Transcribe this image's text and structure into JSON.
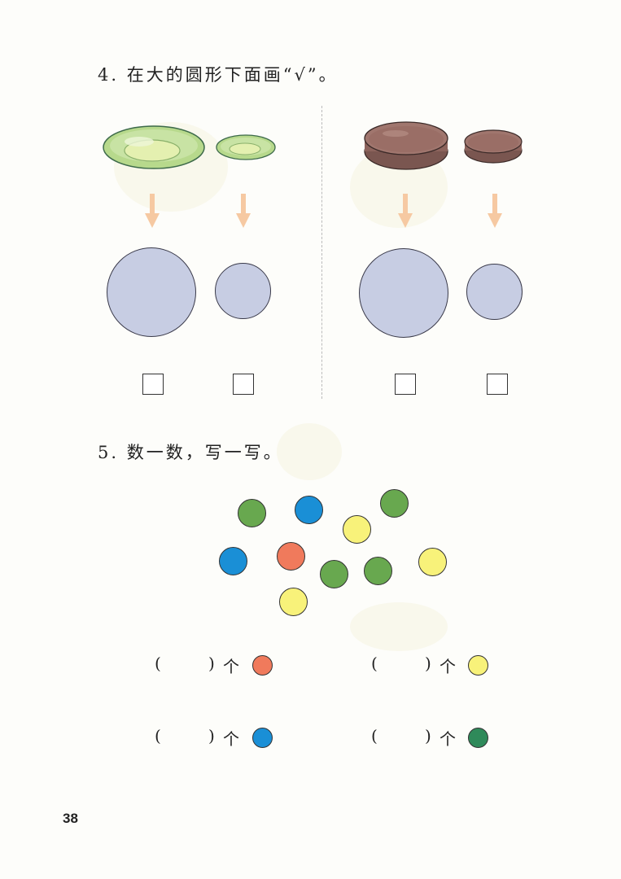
{
  "question4": {
    "title": "4. 在大的圆形下面画“√”。"
  },
  "question5": {
    "title": "5. 数一数，写一写。",
    "unit": "个",
    "open_paren": "(",
    "close_paren": ")",
    "dot_colors": {
      "green": "#68a84f",
      "blue": "#1a8fd6",
      "yellow": "#f8f27a",
      "red": "#f07a5c",
      "dark_green": "#2f8a5a"
    },
    "dot_counts": {
      "green": 4,
      "blue": 2,
      "yellow": 3,
      "red": 1
    },
    "answers": [
      {
        "color": "red",
        "value": ""
      },
      {
        "color": "yellow",
        "value": ""
      },
      {
        "color": "blue",
        "value": ""
      },
      {
        "color": "dark_green",
        "value": ""
      }
    ]
  },
  "page_number": "38",
  "colors": {
    "circle_fill": "#c7cde3",
    "arrow_fill": "#f6c9a2",
    "green_plate": "#b7d98c",
    "brown_plate": "#9a6e66"
  }
}
